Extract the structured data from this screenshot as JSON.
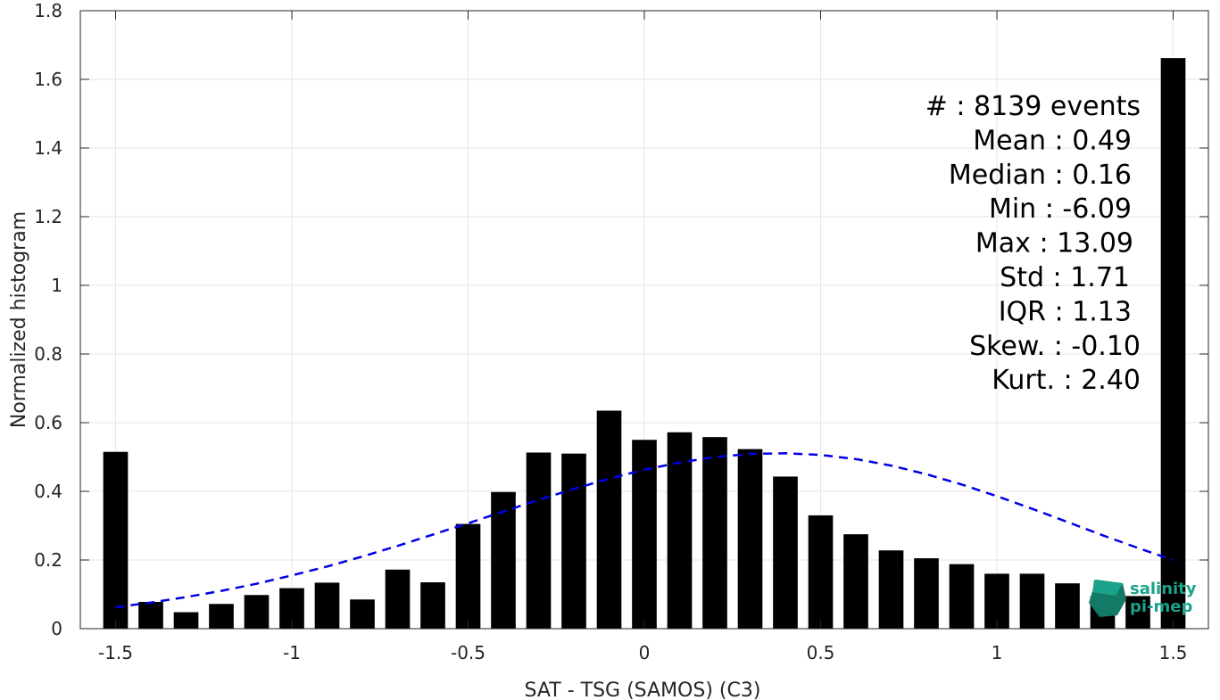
{
  "chart_data": {
    "type": "bar",
    "xlabel": "SAT - TSG (SAMOS) (C3)",
    "ylabel": "Normalized histogram",
    "xlim": [
      -1.6,
      1.6
    ],
    "ylim": [
      0,
      1.8
    ],
    "xticks": [
      -1.5,
      -1,
      -0.5,
      0,
      0.5,
      1,
      1.5
    ],
    "xtick_labels": [
      "-1.5",
      "-1",
      "-0.5",
      "0",
      "0.5",
      "1",
      "1.5"
    ],
    "yticks": [
      0,
      0.2,
      0.4,
      0.6,
      0.8,
      1,
      1.2,
      1.4,
      1.6,
      1.8
    ],
    "ytick_labels": [
      "0",
      "0.2",
      "0.4",
      "0.6",
      "0.8",
      "1",
      "1.2",
      "1.4",
      "1.6",
      "1.8"
    ],
    "grid": true,
    "bar_color": "#000000",
    "bar_width": 0.07,
    "bins": {
      "x": [
        -1.5,
        -1.4,
        -1.3,
        -1.2,
        -1.1,
        -1.0,
        -0.9,
        -0.8,
        -0.7,
        -0.6,
        -0.5,
        -0.4,
        -0.3,
        -0.2,
        -0.1,
        0.0,
        0.1,
        0.2,
        0.3,
        0.4,
        0.5,
        0.6,
        0.7,
        0.8,
        0.9,
        1.0,
        1.1,
        1.2,
        1.3,
        1.4,
        1.5
      ],
      "values": [
        0.515,
        0.078,
        0.048,
        0.072,
        0.098,
        0.118,
        0.134,
        0.085,
        0.172,
        0.135,
        0.305,
        0.398,
        0.513,
        0.51,
        0.635,
        0.55,
        0.572,
        0.558,
        0.523,
        0.443,
        0.33,
        0.275,
        0.228,
        0.205,
        0.188,
        0.16,
        0.16,
        0.132,
        0.095,
        0.095,
        1.662
      ]
    },
    "fit_curve": {
      "style": "dashed",
      "color": "#0000e6",
      "x": [
        -1.5,
        -1.4,
        -1.3,
        -1.2,
        -1.1,
        -1.0,
        -0.9,
        -0.8,
        -0.7,
        -0.6,
        -0.5,
        -0.4,
        -0.3,
        -0.2,
        -0.1,
        0.0,
        0.1,
        0.2,
        0.3,
        0.4,
        0.5,
        0.6,
        0.7,
        0.8,
        0.9,
        1.0,
        1.1,
        1.2,
        1.3,
        1.4,
        1.5
      ],
      "y": [
        0.062,
        0.076,
        0.092,
        0.11,
        0.131,
        0.155,
        0.181,
        0.21,
        0.241,
        0.274,
        0.307,
        0.341,
        0.375,
        0.407,
        0.437,
        0.463,
        0.484,
        0.5,
        0.509,
        0.511,
        0.506,
        0.494,
        0.475,
        0.45,
        0.42,
        0.386,
        0.349,
        0.311,
        0.272,
        0.235,
        0.2
      ]
    },
    "annotations": [
      "#  : 8139 events",
      "Mean : 0.49",
      "Median : 0.16",
      "Min : -6.09",
      "Max : 13.09",
      "Std : 1.71",
      "IQR : 1.13",
      "Skew. : -0.10",
      "Kurt. : 2.40"
    ]
  },
  "logo": {
    "line1": "salinity",
    "line2": "pi-mep"
  }
}
